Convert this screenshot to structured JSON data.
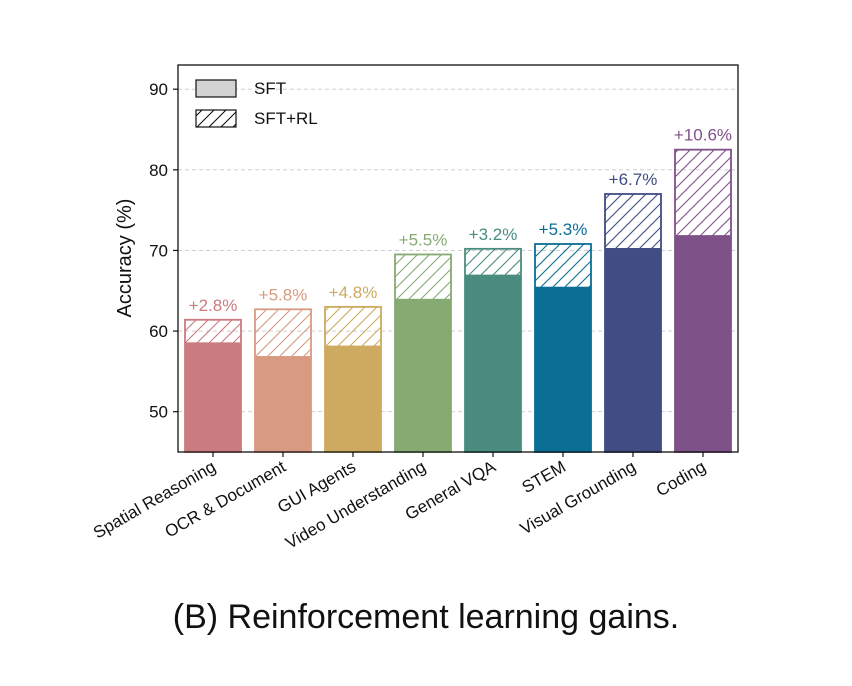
{
  "chart_data": {
    "type": "bar",
    "title": "",
    "caption": "(B) Reinforcement learning gains.",
    "xlabel": "",
    "ylabel": "Accuracy (%)",
    "ylim": [
      45,
      93
    ],
    "yticks": [
      50,
      60,
      70,
      80,
      90
    ],
    "grid": true,
    "legend_position": "top-left",
    "categories": [
      "Spatial Reasoning",
      "OCR & Document",
      "GUI Agents",
      "Video Understanding",
      "General VQA",
      "STEM",
      "Visual Grounding",
      "Coding"
    ],
    "series": [
      {
        "name": "SFT",
        "values": [
          58.6,
          56.9,
          58.2,
          64.0,
          67.0,
          65.5,
          70.3,
          71.9
        ]
      },
      {
        "name": "SFT+RL",
        "values": [
          61.4,
          62.7,
          63.0,
          69.5,
          70.2,
          70.8,
          77.0,
          82.5
        ]
      }
    ],
    "gain_labels": [
      "+2.8%",
      "+5.8%",
      "+4.8%",
      "+5.5%",
      "+3.2%",
      "+5.3%",
      "+6.7%",
      "+10.6%"
    ],
    "colors": [
      "#c97b80",
      "#d99a82",
      "#cdaa5f",
      "#86ab72",
      "#4a8d80",
      "#0a6e95",
      "#3f4d84",
      "#7f5189"
    ],
    "label_colors": [
      "#c97b80",
      "#d99a82",
      "#cdaa5f",
      "#86ab72",
      "#4a8d80",
      "#0a6e95",
      "#3f4d84",
      "#7f5189"
    ],
    "legend": [
      {
        "label": "SFT",
        "style": "solid",
        "color": "#d3d3d3"
      },
      {
        "label": "SFT+RL",
        "style": "hatched",
        "color": "#ffffff"
      }
    ]
  }
}
